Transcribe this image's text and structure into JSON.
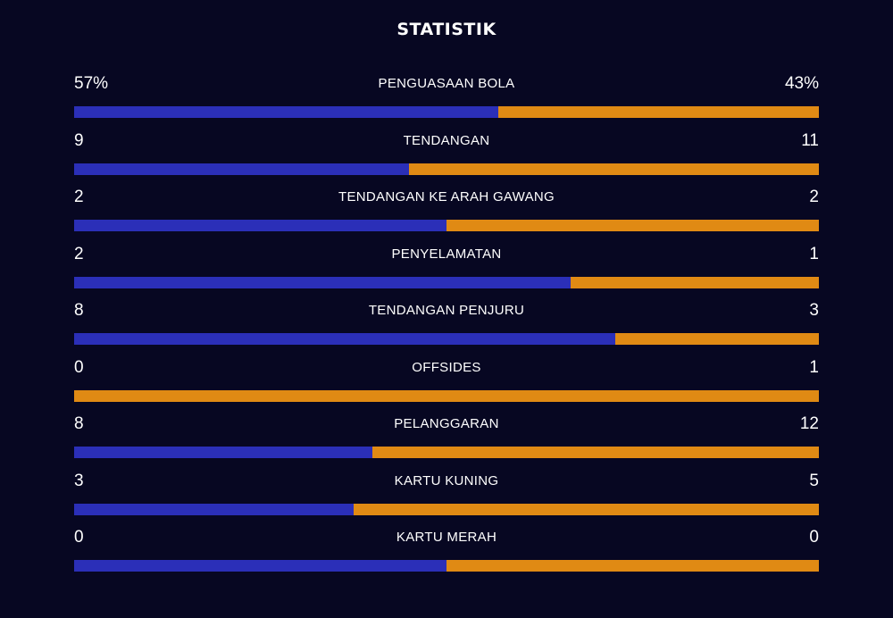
{
  "title": "STATISTIK",
  "colors": {
    "background": "#070722",
    "home": "#2b2fb8",
    "away": "#e08a14",
    "text": "#ffffff"
  },
  "stats": [
    {
      "label": "PENGUASAAN BOLA",
      "home": "57%",
      "away": "43%",
      "home_share": 0.57
    },
    {
      "label": "TENDANGAN",
      "home": "9",
      "away": "11",
      "home_share": 0.45
    },
    {
      "label": "TENDANGAN KE ARAH GAWANG",
      "home": "2",
      "away": "2",
      "home_share": 0.5
    },
    {
      "label": "PENYELAMATAN",
      "home": "2",
      "away": "1",
      "home_share": 0.667
    },
    {
      "label": "TENDANGAN PENJURU",
      "home": "8",
      "away": "3",
      "home_share": 0.727
    },
    {
      "label": "OFFSIDES",
      "home": "0",
      "away": "1",
      "home_share": 0
    },
    {
      "label": "PELANGGARAN",
      "home": "8",
      "away": "12",
      "home_share": 0.4
    },
    {
      "label": "KARTU KUNING",
      "home": "3",
      "away": "5",
      "home_share": 0.375
    },
    {
      "label": "KARTU MERAH",
      "home": "0",
      "away": "0",
      "home_share": 0.5
    }
  ]
}
